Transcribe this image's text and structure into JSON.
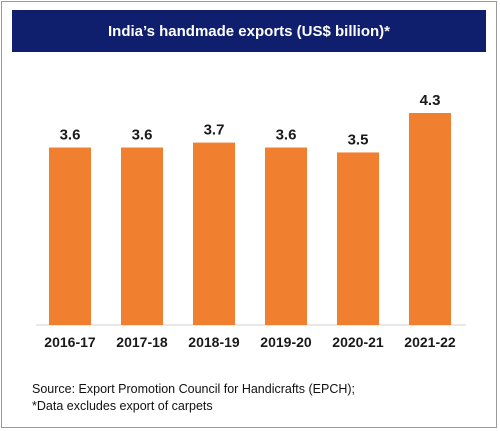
{
  "chart_data": {
    "type": "bar",
    "title": "India’s handmade exports (US$ billion)*",
    "categories": [
      "2016-17",
      "2017-18",
      "2018-19",
      "2019-20",
      "2020-21",
      "2021-22"
    ],
    "values": [
      3.6,
      3.6,
      3.7,
      3.6,
      3.5,
      4.3
    ],
    "value_labels": [
      "3.6",
      "3.6",
      "3.7",
      "3.6",
      "3.5",
      "4.3"
    ],
    "bar_color": "#f07f2f",
    "title_bg_color": "#0f1f6e",
    "grid": false,
    "legend": "none"
  },
  "footer": {
    "source": "Source: Export Promotion Council for Handicrafts (EPCH);",
    "note": "*Data excludes export of carpets"
  }
}
